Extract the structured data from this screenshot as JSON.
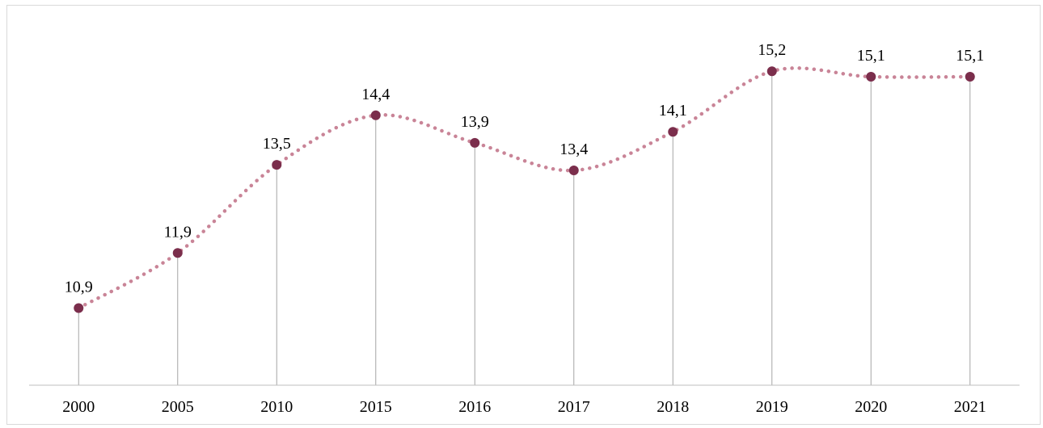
{
  "chart_data": {
    "type": "line",
    "categories": [
      "2000",
      "2005",
      "2010",
      "2015",
      "2016",
      "2017",
      "2018",
      "2019",
      "2020",
      "2021"
    ],
    "values": [
      10.9,
      11.9,
      13.5,
      14.4,
      13.9,
      13.4,
      14.1,
      15.2,
      15.1,
      15.1
    ],
    "data_labels": [
      "10,9",
      "11,9",
      "13,5",
      "14,4",
      "13,9",
      "13,4",
      "14,1",
      "15,2",
      "15,1",
      "15,1"
    ],
    "title": "",
    "xlabel": "",
    "ylabel": "",
    "ylim": [
      9.5,
      16.2
    ],
    "grid": false,
    "legend": "none",
    "line_style": "dotted-smooth",
    "drop_lines": true,
    "colors": {
      "line": "#c98497",
      "marker": "#7b2e4c",
      "drop_line": "#a6a6a6",
      "axis": "#bfbfbf",
      "text": "#000000"
    }
  }
}
